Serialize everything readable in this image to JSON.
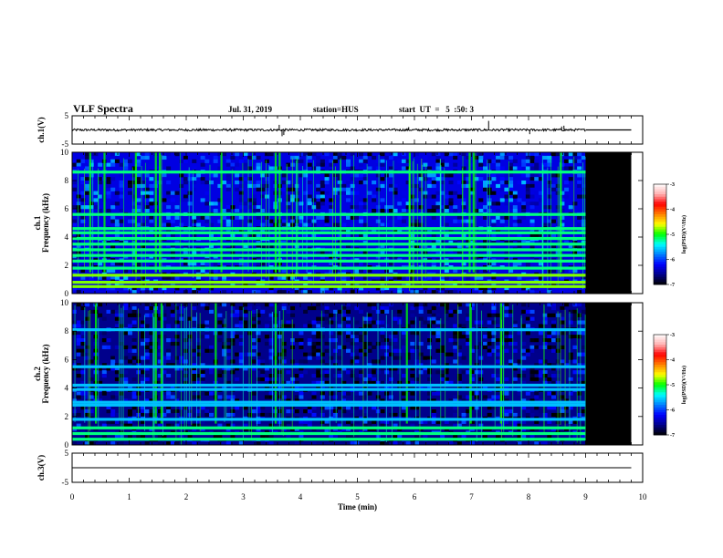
{
  "header": {
    "title": "VLF Spectra",
    "date": "Jul. 31, 2019",
    "station": "station=HUS",
    "start": "start  UT  =   5  :50: 3"
  },
  "colors": {
    "background": "#ffffff",
    "axes": "#000000",
    "no_data": "#000000",
    "colormap": [
      "#000000",
      "#00008b",
      "#0000ff",
      "#0080ff",
      "#00ffff",
      "#00ff00",
      "#ffff00",
      "#ff8000",
      "#ff0000",
      "#ffb0b0",
      "#ffffff"
    ]
  },
  "chart_data": [
    {
      "id": "ch1",
      "type": "line",
      "ylabel": "ch.1(V)",
      "xlim": [
        0,
        10
      ],
      "ylim": [
        -5,
        5
      ],
      "yticks": [
        5,
        -5
      ],
      "data_end_min": 9.0,
      "baseline": 0,
      "noise_amplitude": 0.4,
      "spikes": [
        {
          "t": 3.63,
          "v": 1.8
        },
        {
          "t": 3.68,
          "v": -2.2
        },
        {
          "t": 3.71,
          "v": -1.8
        },
        {
          "t": 5.9,
          "v": 1.0
        },
        {
          "t": 7.3,
          "v": 3.2
        },
        {
          "t": 8.02,
          "v": -1.5
        },
        {
          "t": 8.58,
          "v": 1.2
        },
        {
          "t": 8.62,
          "v": 1.5
        }
      ]
    },
    {
      "id": "ch1-spec",
      "type": "heatmap",
      "ylabel": "ch.1\nFrequency (kHz)",
      "xlim": [
        0,
        10
      ],
      "ylim": [
        0,
        10
      ],
      "yticks": [
        0,
        2,
        4,
        6,
        8,
        10
      ],
      "data_end_min": 9.0,
      "colorbar": {
        "label": "log(PSD)(V²/Hz)",
        "range": [
          -7,
          -3
        ],
        "ticks": [
          -3,
          -4,
          -5,
          -6,
          -7
        ]
      },
      "background_level": -6.3,
      "bands_khz": [
        0.5,
        0.8,
        1.3,
        1.8,
        2.3,
        2.7,
        3.1,
        3.5,
        3.9,
        4.3,
        4.6,
        5.6,
        8.6
      ],
      "band_level": -5.2,
      "bursts_min": [
        0.3,
        0.55,
        1.1,
        1.45,
        1.52,
        2.6,
        3.55,
        3.62,
        5.9,
        6.95,
        7.02,
        8.55
      ]
    },
    {
      "id": "ch2-spec",
      "type": "heatmap",
      "ylabel": "ch.2\nFrequency (kHz)",
      "xlim": [
        0,
        10
      ],
      "ylim": [
        0,
        10
      ],
      "yticks": [
        0,
        2,
        4,
        6,
        8,
        10
      ],
      "data_end_min": 9.0,
      "colorbar": {
        "label": "log(PSD)(V²/Hz)",
        "range": [
          -7,
          -3
        ],
        "ticks": [
          -3,
          -4,
          -5,
          -6,
          -7
        ]
      },
      "background_level": -6.6,
      "bands_khz": [
        0.4,
        0.8,
        1.2,
        1.8,
        2.8,
        3.0,
        3.9,
        4.2,
        5.5,
        8.1
      ],
      "band_level": -5.6,
      "bursts_min": [
        0.4,
        1.45,
        1.55,
        2.5,
        3.55,
        5.85,
        6.97,
        7.5
      ]
    },
    {
      "id": "ch3",
      "type": "line",
      "ylabel": "ch.3(V)",
      "xlabel": "Time (min)",
      "xlim": [
        0,
        10
      ],
      "xticks": [
        0,
        1,
        2,
        3,
        4,
        5,
        6,
        7,
        8,
        9,
        10
      ],
      "ylim": [
        -5,
        5
      ],
      "yticks": [
        5,
        -5
      ],
      "data_end_min": 9.8,
      "baseline": 0
    }
  ]
}
